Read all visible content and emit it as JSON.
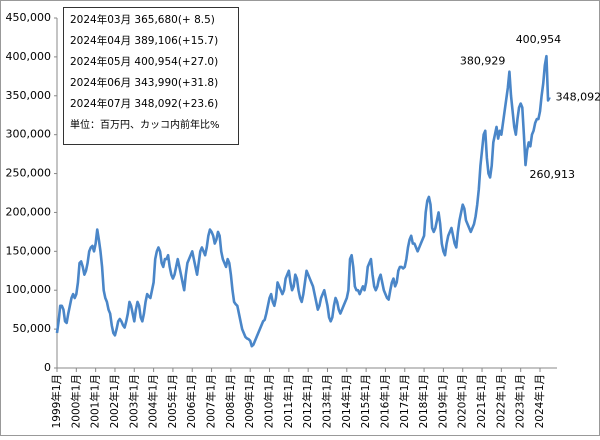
{
  "chart_data": {
    "type": "line",
    "info_box": [
      "2024年03月 365,680(+ 8.5)",
      "2024年04月 389,106(+15.7)",
      "2024年05月 400,954(+27.0)",
      "2024年06月 343,990(+31.8)",
      "2024年07月 348,092(+23.6)",
      "単位：百万円、カッコ内前年比%"
    ],
    "color": "#4a86c8",
    "ylim": [
      0,
      450000
    ],
    "yticks": [
      0,
      {
        "value": 50000,
        "label": "50,000"
      },
      {
        "value": 100000,
        "label": "100,000"
      },
      {
        "value": 150000,
        "label": "150,000"
      },
      {
        "value": 200000,
        "label": "200,000"
      },
      {
        "value": 250000,
        "label": "250,000"
      },
      {
        "value": 300000,
        "label": "300,000"
      },
      {
        "value": 350000,
        "label": "350,000"
      },
      {
        "value": 400000,
        "label": "400,000"
      },
      {
        "value": 450000,
        "label": "450,000"
      }
    ],
    "categories": [
      "1999年1月",
      null,
      null,
      null,
      null,
      null,
      null,
      null,
      null,
      null,
      null,
      null,
      "2000年1月",
      null,
      null,
      null,
      null,
      null,
      null,
      null,
      null,
      null,
      null,
      null,
      "2001年1月",
      null,
      null,
      null,
      null,
      null,
      null,
      null,
      null,
      null,
      null,
      null,
      "2002年1月",
      null,
      null,
      null,
      null,
      null,
      null,
      null,
      null,
      null,
      null,
      null,
      "2003年1月",
      null,
      null,
      null,
      null,
      null,
      null,
      null,
      null,
      null,
      null,
      null,
      "2004年1月",
      null,
      null,
      null,
      null,
      null,
      null,
      null,
      null,
      null,
      null,
      null,
      "2005年1月",
      null,
      null,
      null,
      null,
      null,
      null,
      null,
      null,
      null,
      null,
      null,
      "2006年1月",
      null,
      null,
      null,
      null,
      null,
      null,
      null,
      null,
      null,
      null,
      null,
      "2007年1月",
      null,
      null,
      null,
      null,
      null,
      null,
      null,
      null,
      null,
      null,
      null,
      "2008年1月",
      null,
      null,
      null,
      null,
      null,
      null,
      null,
      null,
      null,
      null,
      null,
      "2009年1月",
      null,
      null,
      null,
      null,
      null,
      null,
      null,
      null,
      null,
      null,
      null,
      "2010年1月",
      null,
      null,
      null,
      null,
      null,
      null,
      null,
      null,
      null,
      null,
      null,
      "2011年1月",
      null,
      null,
      null,
      null,
      null,
      null,
      null,
      null,
      null,
      null,
      null,
      "2012年1月",
      null,
      null,
      null,
      null,
      null,
      null,
      null,
      null,
      null,
      null,
      null,
      "2013年1月",
      null,
      null,
      null,
      null,
      null,
      null,
      null,
      null,
      null,
      null,
      null,
      "2014年1月",
      null,
      null,
      null,
      null,
      null,
      null,
      null,
      null,
      null,
      null,
      null,
      "2015年1月",
      null,
      null,
      null,
      null,
      null,
      null,
      null,
      null,
      null,
      null,
      null,
      "2016年1月",
      null,
      null,
      null,
      null,
      null,
      null,
      null,
      null,
      null,
      null,
      null,
      "2017年1月",
      null,
      null,
      null,
      null,
      null,
      null,
      null,
      null,
      null,
      null,
      null,
      "2018年1月",
      null,
      null,
      null,
      null,
      null,
      null,
      null,
      null,
      null,
      null,
      null,
      "2019年1月",
      null,
      null,
      null,
      null,
      null,
      null,
      null,
      null,
      null,
      null,
      null,
      "2020年1月",
      null,
      null,
      null,
      null,
      null,
      null,
      null,
      null,
      null,
      null,
      null,
      "2021年1月",
      null,
      null,
      null,
      null,
      null,
      null,
      null,
      null,
      null,
      null,
      null,
      "2022年1月",
      null,
      null,
      null,
      null,
      null,
      null,
      null,
      null,
      null,
      null,
      null,
      "2023年1月",
      null,
      null,
      null,
      null,
      null,
      null,
      null,
      null,
      null,
      null,
      null,
      "2024年1月",
      null,
      null,
      null,
      null,
      null,
      null
    ],
    "values": [
      45000,
      60000,
      80000,
      80000,
      75000,
      60000,
      58000,
      70000,
      80000,
      90000,
      95000,
      90000,
      95000,
      110000,
      135000,
      137000,
      130000,
      120000,
      125000,
      135000,
      150000,
      155000,
      157000,
      150000,
      160000,
      178000,
      165000,
      150000,
      130000,
      100000,
      90000,
      85000,
      75000,
      70000,
      55000,
      45000,
      42000,
      50000,
      60000,
      63000,
      60000,
      55000,
      52000,
      60000,
      70000,
      85000,
      80000,
      70000,
      60000,
      75000,
      85000,
      80000,
      65000,
      60000,
      70000,
      85000,
      95000,
      92000,
      90000,
      100000,
      110000,
      140000,
      150000,
      155000,
      150000,
      135000,
      130000,
      140000,
      140000,
      145000,
      130000,
      120000,
      115000,
      120000,
      130000,
      140000,
      130000,
      120000,
      110000,
      100000,
      120000,
      135000,
      140000,
      145000,
      150000,
      140000,
      130000,
      120000,
      135000,
      150000,
      155000,
      150000,
      145000,
      155000,
      170000,
      178000,
      175000,
      170000,
      160000,
      165000,
      175000,
      170000,
      150000,
      140000,
      135000,
      130000,
      140000,
      135000,
      120000,
      100000,
      85000,
      82000,
      80000,
      70000,
      60000,
      50000,
      45000,
      40000,
      38000,
      37000,
      35000,
      28000,
      30000,
      35000,
      40000,
      45000,
      50000,
      55000,
      60000,
      62000,
      70000,
      80000,
      90000,
      95000,
      85000,
      80000,
      90000,
      110000,
      105000,
      100000,
      95000,
      100000,
      115000,
      120000,
      125000,
      110000,
      100000,
      105000,
      120000,
      115000,
      100000,
      90000,
      85000,
      95000,
      110000,
      125000,
      120000,
      115000,
      110000,
      105000,
      95000,
      85000,
      75000,
      80000,
      90000,
      95000,
      100000,
      90000,
      80000,
      65000,
      60000,
      65000,
      80000,
      90000,
      85000,
      75000,
      70000,
      75000,
      80000,
      85000,
      90000,
      100000,
      140000,
      145000,
      130000,
      105000,
      100000,
      100000,
      95000,
      100000,
      105000,
      100000,
      110000,
      130000,
      135000,
      140000,
      120000,
      105000,
      100000,
      105000,
      115000,
      120000,
      110000,
      100000,
      95000,
      90000,
      88000,
      100000,
      110000,
      115000,
      105000,
      110000,
      125000,
      130000,
      130000,
      128000,
      130000,
      140000,
      155000,
      165000,
      170000,
      160000,
      160000,
      155000,
      150000,
      155000,
      160000,
      165000,
      170000,
      200000,
      215000,
      220000,
      210000,
      180000,
      175000,
      180000,
      190000,
      200000,
      185000,
      160000,
      150000,
      145000,
      160000,
      170000,
      175000,
      180000,
      170000,
      160000,
      155000,
      175000,
      190000,
      200000,
      210000,
      205000,
      190000,
      185000,
      180000,
      175000,
      180000,
      185000,
      195000,
      210000,
      230000,
      260000,
      280000,
      300000,
      305000,
      270000,
      250000,
      245000,
      260000,
      290000,
      300000,
      310000,
      295000,
      305000,
      300000,
      315000,
      330000,
      345000,
      360000,
      380929,
      350000,
      330000,
      310000,
      300000,
      320000,
      335000,
      340000,
      335000,
      300000,
      260913,
      280000,
      290000,
      285000,
      300000,
      305000,
      315000,
      320000,
      320000,
      330000,
      350000,
      365680,
      389106,
      400954,
      343990,
      348092
    ],
    "value_labels": [
      null,
      null,
      null,
      null,
      null,
      null,
      null,
      null,
      null,
      null,
      null,
      null,
      null,
      null,
      null,
      null,
      null,
      null,
      null,
      null,
      null,
      null,
      null,
      null,
      null,
      null,
      null,
      null,
      null,
      null,
      null,
      null,
      null,
      null,
      null,
      null,
      null,
      null,
      null,
      null,
      null,
      null,
      null,
      null,
      null,
      null,
      null,
      null,
      null,
      null,
      null,
      null,
      null,
      null,
      null,
      null,
      null,
      null,
      null,
      null,
      null,
      null,
      null,
      null,
      null,
      null,
      null,
      null,
      null,
      null,
      null,
      null,
      null,
      null,
      null,
      null,
      null,
      null,
      null,
      null,
      null,
      null,
      null,
      null,
      null,
      null,
      null,
      null,
      null,
      null,
      null,
      null,
      null,
      null,
      null,
      null,
      null,
      null,
      null,
      null,
      null,
      null,
      null,
      null,
      null,
      null,
      null,
      null,
      null,
      null,
      null,
      null,
      null,
      null,
      null,
      null,
      null,
      null,
      null,
      null,
      null,
      null,
      null,
      null,
      null,
      null,
      null,
      null,
      null,
      null,
      null,
      null,
      null,
      null,
      null,
      null,
      null,
      null,
      null,
      null,
      null,
      null,
      null,
      null,
      null,
      null,
      null,
      null,
      null,
      null,
      null,
      null,
      null,
      null,
      null,
      null,
      null,
      null,
      null,
      null,
      null,
      null,
      null,
      null,
      null,
      null,
      null,
      null,
      null,
      null,
      null,
      null,
      null,
      null,
      null,
      null,
      null,
      null,
      null,
      null,
      null,
      null,
      null,
      null,
      null,
      null,
      null,
      null,
      null,
      null,
      null,
      null,
      null,
      null,
      null,
      null,
      null,
      null,
      null,
      null,
      null,
      null,
      null,
      null,
      null,
      null,
      null,
      null,
      null,
      null,
      null,
      null,
      null,
      null,
      null,
      null,
      null,
      null,
      null,
      null,
      null,
      null,
      null,
      null,
      null,
      null,
      null,
      null,
      null,
      null,
      null,
      null,
      null,
      null,
      null,
      null,
      null,
      null,
      null,
      null,
      null,
      null,
      null,
      null,
      null,
      null,
      null,
      null,
      null,
      null,
      null,
      null,
      null,
      null,
      null,
      null,
      null,
      null,
      null,
      null,
      null,
      null,
      null,
      null,
      null,
      null,
      null,
      null,
      null,
      null,
      null,
      null,
      null,
      null,
      null,
      null,
      null,
      null,
      null,
      null,
      null,
      "380,929",
      null,
      null,
      null,
      null,
      null,
      null,
      null,
      null,
      null,
      "260,913",
      null,
      null,
      null,
      null,
      null,
      null,
      null,
      null,
      null,
      null,
      null,
      null,
      "400,954",
      null,
      "348,092"
    ]
  }
}
